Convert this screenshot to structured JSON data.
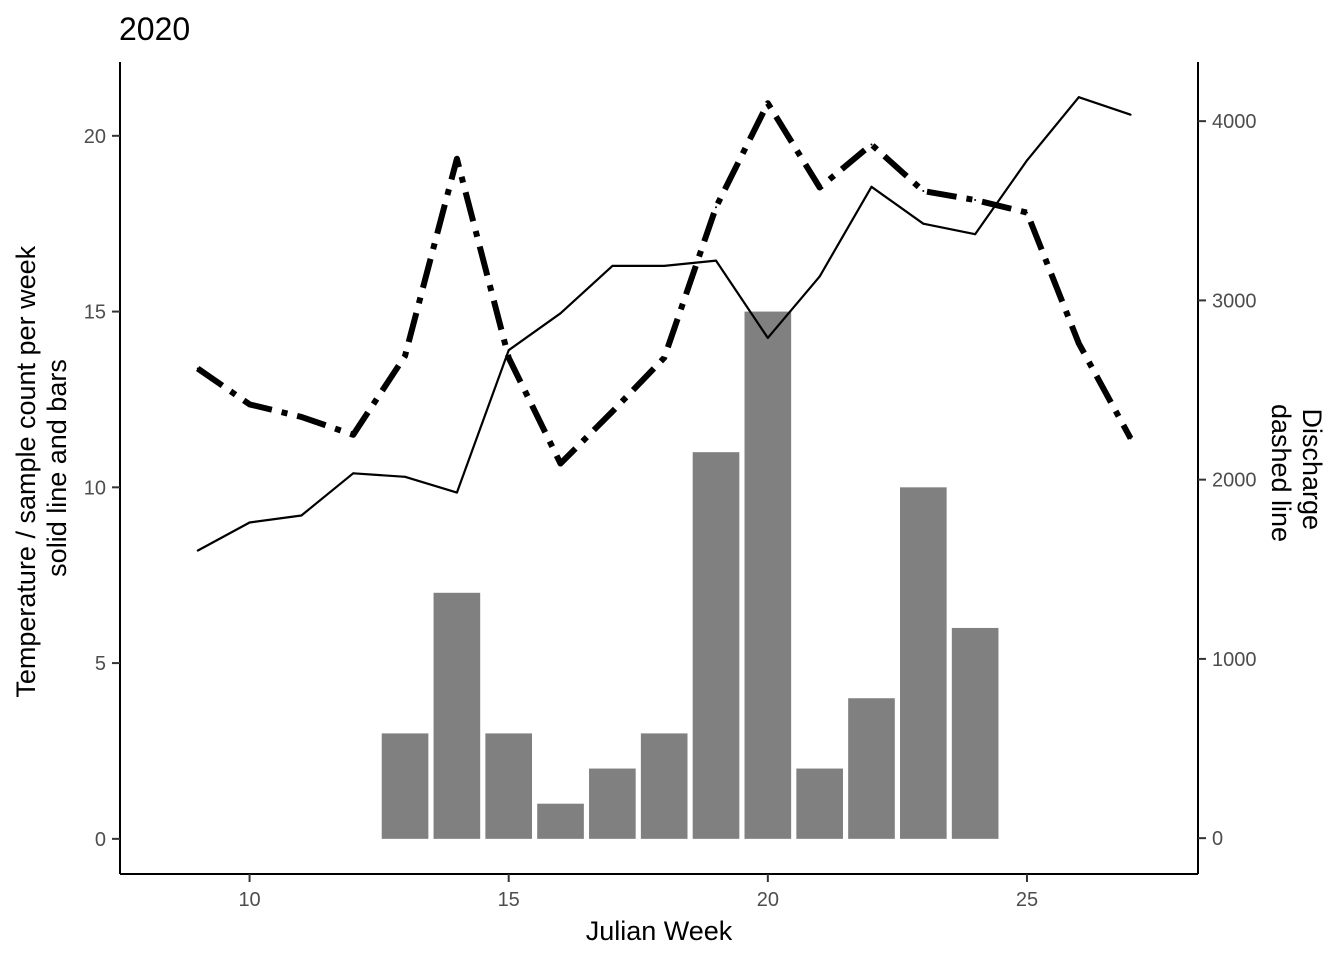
{
  "chart_data": {
    "type": "bar",
    "title": "2020",
    "xlabel": "Julian Week",
    "ylabel_lines": [
      "Temperature / sample count per week",
      "solid line and bars"
    ],
    "y2label_lines": [
      "Discharge",
      "dashed line"
    ],
    "xlim": [
      7.5,
      28.3
    ],
    "ylim": [
      -1,
      22.1
    ],
    "y2lim": [
      -200,
      4330
    ],
    "xticks": [
      10,
      15,
      20,
      25
    ],
    "yticks": [
      0,
      5,
      10,
      15,
      20
    ],
    "y2ticks": [
      0,
      1000,
      2000,
      3000,
      4000
    ],
    "grid": false,
    "bar_color": "#808080",
    "line_color": "#000000",
    "bars": {
      "name": "sample count",
      "x": [
        13,
        14,
        15,
        16,
        17,
        18,
        19,
        20,
        21,
        22,
        23,
        24
      ],
      "values": [
        3,
        7,
        3,
        1,
        2,
        3,
        11,
        15,
        2,
        4,
        10,
        6
      ]
    },
    "temperature": {
      "name": "Temperature",
      "style": "solid",
      "x": [
        9,
        10,
        11,
        12,
        13,
        14,
        15,
        16,
        17,
        18,
        19,
        20,
        21,
        22,
        23,
        24,
        25,
        26,
        27
      ],
      "values": [
        8.2,
        9.0,
        9.2,
        10.4,
        10.3,
        9.85,
        13.9,
        14.95,
        16.3,
        16.3,
        16.45,
        14.25,
        16.0,
        18.55,
        17.5,
        17.2,
        19.3,
        21.1,
        20.6
      ]
    },
    "discharge": {
      "name": "Discharge",
      "style": "dashed",
      "axis": "right",
      "x": [
        9,
        10,
        11,
        12,
        13,
        14,
        15,
        16,
        17,
        18,
        19,
        20,
        21,
        22,
        23,
        24,
        25,
        26,
        27
      ],
      "values": [
        2620,
        2420,
        2350,
        2250,
        2690,
        3790,
        2680,
        2090,
        2380,
        2680,
        3520,
        4100,
        3630,
        3870,
        3610,
        3560,
        3490,
        2760,
        2230
      ]
    }
  }
}
